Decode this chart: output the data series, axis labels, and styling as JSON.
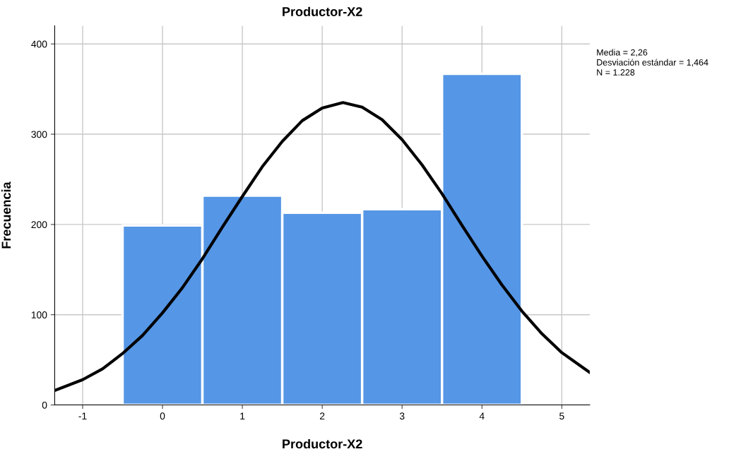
{
  "chart_data": {
    "type": "histogram",
    "title": "Productor-X2",
    "xlabel": "Productor-X2",
    "ylabel": "Frecuencia",
    "bins": [
      -0.5,
      0.5,
      1.5,
      2.5,
      3.5,
      4.5
    ],
    "values": [
      199,
      232,
      213,
      217,
      367
    ],
    "color": "#5596e6",
    "series": [
      {
        "type": "line",
        "color": "#000000",
        "x": [
          -1.35,
          -1,
          -0.75,
          -0.5,
          -0.25,
          0,
          0.25,
          0.5,
          0.75,
          1,
          1.25,
          1.5,
          1.75,
          2,
          2.26,
          2.5,
          2.75,
          3,
          3.25,
          3.5,
          3.75,
          4,
          4.25,
          4.5,
          4.75,
          5,
          5.35
        ],
        "values": [
          16,
          28,
          40,
          57,
          77,
          102,
          130,
          162,
          197,
          231,
          264,
          292,
          315,
          329,
          335,
          330,
          316,
          294,
          266,
          234,
          199,
          165,
          133,
          104,
          79,
          58,
          36
        ]
      }
    ],
    "xlim": [
      -1.35,
      5.35
    ],
    "ylim": [
      0,
      420
    ],
    "xticks": [
      -1,
      0,
      1,
      2,
      3,
      4,
      5
    ],
    "yticks": [
      0,
      100,
      200,
      300,
      400
    ],
    "grid": true,
    "annotations": [
      "Media = 2,26",
      "Desviación estándar = 1,464",
      "N = 1.228"
    ]
  }
}
